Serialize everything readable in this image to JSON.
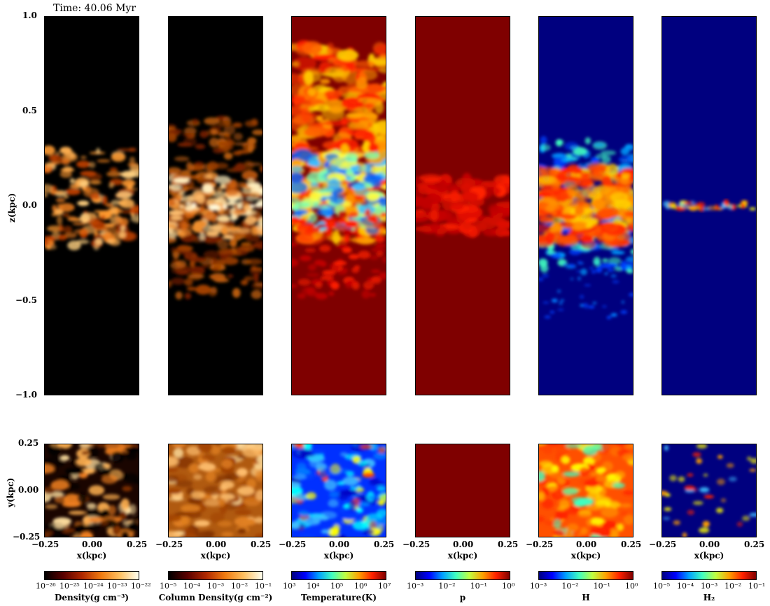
{
  "time_label": "Time: 40.06 Myr",
  "top_yticks": [
    "1.0",
    "0.5",
    "0.0",
    "−0.5",
    "−1.0"
  ],
  "top_ylabel": "z(kpc)",
  "bottom_yticks": [
    "0.25",
    "0.00",
    "−0.25"
  ],
  "bottom_ylabel": "y(kpc)",
  "xticks": [
    "−0.25",
    "0.00",
    "0.25"
  ],
  "xlabel": "x(kpc)",
  "panels": [
    {
      "label": "Density(g cm⁻³)",
      "cbar_ticks": [
        "10⁻²⁶",
        "10⁻²⁵",
        "10⁻²⁴",
        "10⁻²³",
        "10⁻²²"
      ],
      "bg": "#000000",
      "colormap": "afmhot"
    },
    {
      "label": "Column Density(g cm⁻²)",
      "cbar_ticks": [
        "10⁻⁵",
        "10⁻⁴",
        "10⁻³",
        "10⁻²",
        "10⁻¹"
      ],
      "bg": "#000000",
      "colormap": "afmhot"
    },
    {
      "label": "Temperature(K)",
      "cbar_ticks": [
        "10³",
        "10⁴",
        "10⁵",
        "10⁶",
        "10⁷"
      ],
      "bg": "#7f0000",
      "colormap": "jet"
    },
    {
      "label": "p",
      "cbar_ticks": [
        "10⁻³",
        "10⁻²",
        "10⁻¹",
        "10⁰"
      ],
      "bg": "#7f0000",
      "colormap": "jet"
    },
    {
      "label": "H",
      "cbar_ticks": [
        "10⁻³",
        "10⁻²",
        "10⁻¹",
        "10⁰"
      ],
      "bg": "#00007f",
      "colormap": "jet"
    },
    {
      "label": "H₂",
      "cbar_ticks": [
        "10⁻⁵",
        "10⁻⁴",
        "10⁻³",
        "10⁻²",
        "10⁻¹"
      ],
      "bg": "#00007f",
      "colormap": "jet"
    }
  ]
}
